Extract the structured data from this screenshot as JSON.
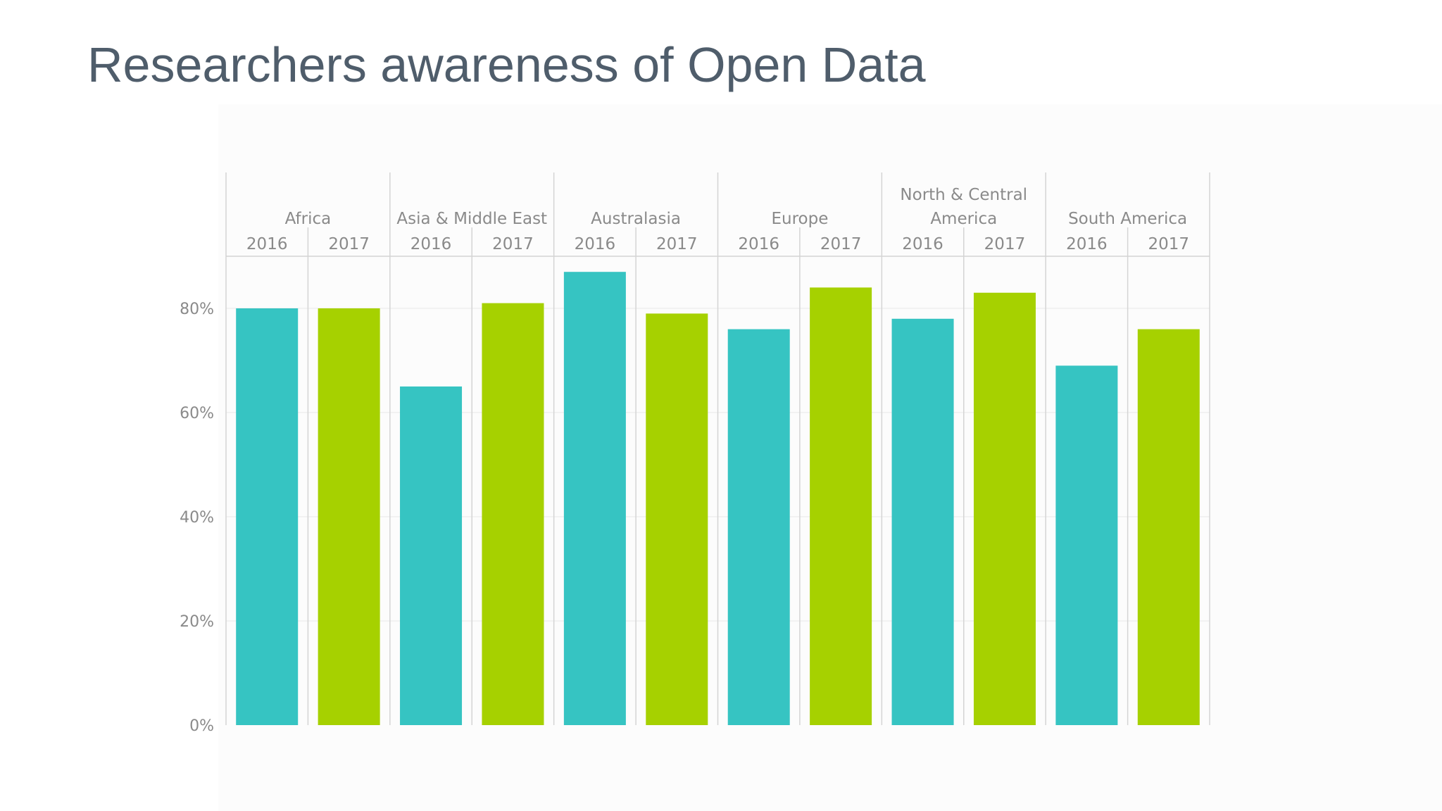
{
  "title": "Researchers awareness of Open Data",
  "colors": {
    "2016": "#36c4c2",
    "2017": "#a6d100",
    "grid": "#e9e9e9",
    "divider": "#d4d4d4",
    "text": "#8a8a8a",
    "title": "#4f5d6b"
  },
  "chart_data": {
    "type": "bar",
    "title": "Researchers awareness of Open Data",
    "ylim": [
      0,
      90
    ],
    "y_ticks": [
      "0%",
      "20%",
      "40%",
      "60%",
      "80%"
    ],
    "grid": true,
    "groups": [
      {
        "lines": [
          "Africa"
        ],
        "years": [
          "2016",
          "2017"
        ],
        "values": [
          80,
          80
        ]
      },
      {
        "lines": [
          "Asia & Middle East"
        ],
        "years": [
          "2016",
          "2017"
        ],
        "values": [
          65,
          81
        ]
      },
      {
        "lines": [
          "Australasia"
        ],
        "years": [
          "2016",
          "2017"
        ],
        "values": [
          87,
          79
        ]
      },
      {
        "lines": [
          "Europe"
        ],
        "years": [
          "2016",
          "2017"
        ],
        "values": [
          76,
          84
        ]
      },
      {
        "lines": [
          "North & Central",
          "America"
        ],
        "years": [
          "2016",
          "2017"
        ],
        "values": [
          78,
          83
        ]
      },
      {
        "lines": [
          "South America"
        ],
        "years": [
          "2016",
          "2017"
        ],
        "values": [
          69,
          76
        ]
      }
    ]
  }
}
